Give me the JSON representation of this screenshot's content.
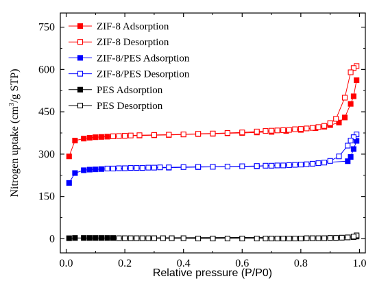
{
  "chart_data": {
    "type": "line",
    "title": "",
    "xlabel": "Relative pressure (P/P0)",
    "ylabel": "Nitrogen uptake (cm3/g STP)",
    "ylabel_parts": {
      "main": "Nitrogen uptake (cm",
      "sup": "3",
      "rest": "/g STP)"
    },
    "xlim": [
      -0.02,
      1.02
    ],
    "ylim": [
      -50,
      800
    ],
    "xticks": [
      0.0,
      0.2,
      0.4,
      0.6,
      0.8,
      1.0
    ],
    "xtick_labels": [
      "0.0",
      "0.2",
      "0.4",
      "0.6",
      "0.8",
      "1.0"
    ],
    "yticks": [
      0,
      150,
      300,
      450,
      600,
      750
    ],
    "ytick_labels": [
      "0",
      "150",
      "300",
      "450",
      "600",
      "750"
    ],
    "grid": false,
    "legend_position": "top-left",
    "series": [
      {
        "name": "ZIF-8 Adsorption",
        "color": "#ff0000",
        "marker": "filled-square",
        "x": [
          0.01,
          0.03,
          0.06,
          0.08,
          0.1,
          0.12,
          0.14,
          0.16,
          0.2,
          0.25,
          0.3,
          0.35,
          0.4,
          0.45,
          0.5,
          0.55,
          0.6,
          0.65,
          0.7,
          0.75,
          0.8,
          0.85,
          0.88,
          0.9,
          0.93,
          0.95,
          0.97,
          0.98,
          0.99
        ],
        "y": [
          292,
          348,
          355,
          358,
          360,
          361,
          362,
          363,
          365,
          366,
          367,
          368,
          370,
          371,
          372,
          374,
          375,
          377,
          379,
          382,
          386,
          392,
          397,
          403,
          412,
          430,
          478,
          505,
          562
        ]
      },
      {
        "name": "ZIF-8 Desorption",
        "color": "#ff0000",
        "marker": "open-square",
        "x": [
          0.99,
          0.98,
          0.97,
          0.95,
          0.92,
          0.9,
          0.88,
          0.86,
          0.84,
          0.82,
          0.8,
          0.78,
          0.76,
          0.74,
          0.72,
          0.7,
          0.68,
          0.65,
          0.6,
          0.55,
          0.5,
          0.45,
          0.4,
          0.35,
          0.3,
          0.25,
          0.22,
          0.2,
          0.18,
          0.16
        ],
        "y": [
          612,
          605,
          590,
          500,
          425,
          410,
          400,
          396,
          393,
          391,
          389,
          388,
          386,
          385,
          384,
          383,
          382,
          380,
          377,
          375,
          373,
          372,
          370,
          369,
          368,
          367,
          366,
          365,
          364,
          363
        ]
      },
      {
        "name": "ZIF-8/PES Adsorption",
        "color": "#0000ff",
        "marker": "filled-square",
        "x": [
          0.01,
          0.03,
          0.06,
          0.08,
          0.1,
          0.12,
          0.35,
          0.45,
          0.65,
          0.96,
          0.97,
          0.98,
          0.99
        ],
        "y": [
          198,
          233,
          243,
          245,
          246,
          247,
          252,
          254,
          257,
          275,
          290,
          318,
          347
        ]
      },
      {
        "name": "ZIF-8/PES Desorption",
        "color": "#0000ff",
        "marker": "open-square",
        "x": [
          0.99,
          0.98,
          0.97,
          0.96,
          0.93,
          0.9,
          0.88,
          0.86,
          0.84,
          0.82,
          0.8,
          0.78,
          0.76,
          0.74,
          0.72,
          0.7,
          0.68,
          0.65,
          0.6,
          0.55,
          0.5,
          0.45,
          0.4,
          0.35,
          0.32,
          0.3,
          0.28,
          0.26,
          0.24,
          0.22,
          0.2,
          0.18,
          0.16,
          0.14
        ],
        "y": [
          370,
          360,
          348,
          330,
          292,
          276,
          270,
          268,
          266,
          264,
          263,
          262,
          261,
          260,
          260,
          259,
          259,
          258,
          257,
          256,
          255,
          255,
          254,
          253,
          253,
          252,
          252,
          251,
          251,
          251,
          250,
          250,
          249,
          249
        ]
      },
      {
        "name": "PES Adsorption",
        "color": "#000000",
        "marker": "filled-square",
        "x": [
          0.01,
          0.03,
          0.06,
          0.08,
          0.1,
          0.12,
          0.14,
          0.16,
          0.98,
          0.99
        ],
        "y": [
          2,
          3,
          3,
          3,
          3,
          3,
          3,
          3,
          6,
          8
        ]
      },
      {
        "name": "PES Desorption",
        "color": "#000000",
        "marker": "open-square",
        "x": [
          0.99,
          0.98,
          0.96,
          0.94,
          0.92,
          0.9,
          0.88,
          0.86,
          0.84,
          0.82,
          0.8,
          0.78,
          0.76,
          0.74,
          0.72,
          0.7,
          0.68,
          0.65,
          0.6,
          0.55,
          0.5,
          0.45,
          0.4,
          0.36,
          0.33,
          0.3,
          0.28,
          0.26,
          0.24,
          0.22,
          0.2,
          0.18
        ],
        "y": [
          12,
          8,
          5,
          4,
          3,
          3,
          2,
          2,
          2,
          2,
          1,
          1,
          1,
          1,
          1,
          1,
          1,
          1,
          1,
          1,
          1,
          1,
          2,
          2,
          2,
          2,
          2,
          2,
          2,
          2,
          2,
          2
        ]
      }
    ]
  }
}
